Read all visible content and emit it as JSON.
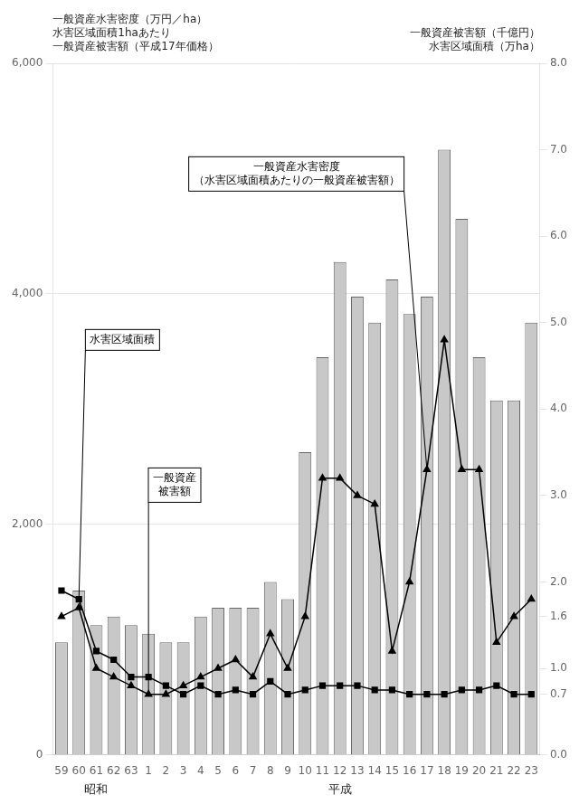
{
  "chart_data": {
    "type": "bar",
    "categories": [
      "59",
      "60",
      "61",
      "62",
      "63",
      "1",
      "2",
      "3",
      "4",
      "5",
      "6",
      "7",
      "8",
      "9",
      "10",
      "11",
      "12",
      "13",
      "14",
      "15",
      "16",
      "17",
      "18",
      "19",
      "20",
      "21",
      "22",
      "23"
    ],
    "ylabel": "一般資産水害密度（万円／ha）\n水害区域面積1haあたり\n一般資産被害額（平成17年価格）",
    "y2label": "一般資産被害額（千億円）\n水害区域面積（万ha）",
    "ylim": [
      0,
      6000
    ],
    "yticks": [
      0,
      {
        "value": 2000,
        "label": "2,000"
      },
      {
        "value": 4000,
        "label": "4,000"
      },
      {
        "value": 6000,
        "label": "6,000"
      }
    ],
    "y2lim": [
      0.0,
      8.0
    ],
    "y2ticks": [
      {
        "value": 0,
        "label": "0.0"
      },
      0.7,
      {
        "value": 1,
        "label": "1.0"
      },
      1.6,
      {
        "value": 2,
        "label": "2.0"
      },
      {
        "value": 3,
        "label": "3.0"
      },
      {
        "value": 4,
        "label": "4.0"
      },
      {
        "value": 5,
        "label": "5.0"
      },
      {
        "value": 6,
        "label": "6.0"
      },
      {
        "value": 7,
        "label": "7.0"
      },
      {
        "value": 8,
        "label": "8.0"
      }
    ],
    "grid": true,
    "series": [
      {
        "type": "bar",
        "color": "#c8c8c8",
        "axis": "y2",
        "values": [
          1.3,
          1.9,
          1.5,
          1.6,
          1.5,
          1.4,
          1.3,
          1.3,
          1.6,
          1.7,
          1.7,
          1.7,
          2.0,
          1.8,
          3.5,
          4.6,
          5.7,
          5.3,
          5.0,
          5.5,
          5.1,
          5.3,
          7.0,
          6.2,
          4.6,
          4.1,
          4.1,
          5.0
        ]
      },
      {
        "type": "line",
        "color": "#000000",
        "marker": "square",
        "axis": "y2",
        "values": [
          1.9,
          1.8,
          1.2,
          1.1,
          0.9,
          0.9,
          0.8,
          0.7,
          0.8,
          0.7,
          0.75,
          0.7,
          0.85,
          0.7,
          0.75,
          0.8,
          0.8,
          0.8,
          0.75,
          0.75,
          0.7,
          0.7,
          0.7,
          0.75,
          0.75,
          0.8,
          0.7,
          0.7
        ]
      },
      {
        "type": "line",
        "color": "#000000",
        "marker": "triangle",
        "axis": "y2",
        "values": [
          1.6,
          1.7,
          1.0,
          0.9,
          0.8,
          0.7,
          0.7,
          0.8,
          0.9,
          1.0,
          1.1,
          0.9,
          1.4,
          1.0,
          1.6,
          3.2,
          3.2,
          3.0,
          2.9,
          1.2,
          2.0,
          3.3,
          4.8,
          3.3,
          3.3,
          1.3,
          1.6,
          1.8
        ]
      }
    ],
    "annotations": [
      {
        "text": "水害区域面積",
        "x": "60",
        "y": 1.8
      },
      {
        "text": "一般資産\n被害額",
        "x": "1",
        "y": 0.7
      },
      {
        "text": "一般資産水害密度\n（水害区域面積あたりの一般資産被害額）",
        "x": "17",
        "y": 3.3
      }
    ],
    "x_groups": [
      {
        "text": "昭和",
        "categories": [
          "59",
          "63"
        ]
      },
      {
        "text": "平成",
        "categories": [
          "1",
          "23"
        ]
      }
    ]
  }
}
